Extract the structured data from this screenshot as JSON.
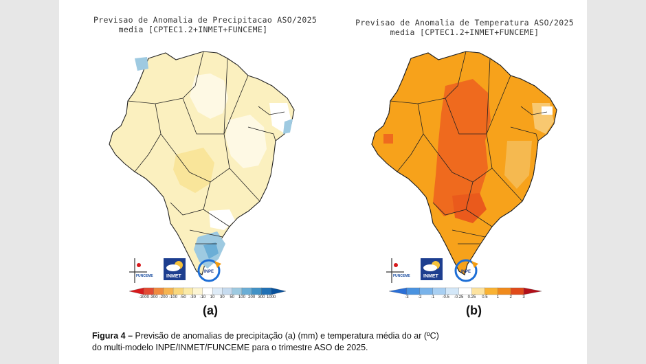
{
  "panel_a": {
    "title_line1": "Previsao de Anomalia de Precipitacao ASO/2025",
    "title_line2": "media [CPTEC1.2+INMET+FUNCEME]",
    "label": "(a)",
    "colorbar_ticks": [
      "-1000",
      "-300",
      "-200",
      "-100",
      "-50",
      "-30",
      "-10",
      "10",
      "30",
      "50",
      "100",
      "200",
      "300",
      "1000"
    ],
    "colorbar_colors": [
      "#d7191c",
      "#e34a33",
      "#f08a3e",
      "#f6b450",
      "#f9d77c",
      "#fbeaa7",
      "#fdf5d2",
      "#ffffff",
      "#deebf7",
      "#c6dbef",
      "#9ecae1",
      "#6baed6",
      "#4292c6",
      "#2171b5",
      "#08519c"
    ]
  },
  "panel_b": {
    "title_line1": "Previsao de Anomalia de Temperatura ASO/2025",
    "title_line2": "media [CPTEC1.2+INMET+FUNCEME]",
    "label": "(b)",
    "colorbar_ticks": [
      "-3",
      "-2",
      "-1",
      "-0.5",
      "-0.25",
      "0.25",
      "0.5",
      "1",
      "2",
      "3"
    ],
    "colorbar_colors": [
      "#2b6fd6",
      "#4a93e0",
      "#79b3ea",
      "#a8cff2",
      "#d3e7f8",
      "#ffffff",
      "#fde3a0",
      "#f9b233",
      "#f08a1c",
      "#e04a1a",
      "#b2101a"
    ]
  },
  "logos": {
    "funceme": "FUNCEME",
    "inmet": "INMET",
    "inpe": "INPE"
  },
  "caption": {
    "label": "Figura 4 –",
    "line1": " Previsão de anomalias de precipitação (a) (mm) e temperatura média do ar (ºC)",
    "line2": "do multi-modelo INPE/INMET/FUNCEME para o trimestre ASO de 2025."
  },
  "colors": {
    "precip_fill": "#fbf0bf",
    "precip_light": "#fef9e4",
    "precip_blue": "#9ecae1",
    "temp_fill": "#f7a21b",
    "temp_hot": "#ef6a1e",
    "temp_light": "#f8c870"
  }
}
